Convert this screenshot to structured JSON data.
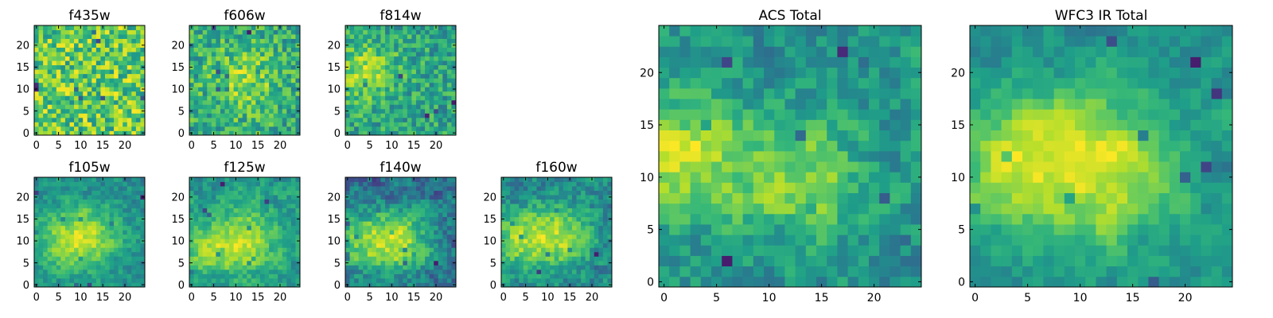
{
  "chart_data": [
    {
      "type": "heatmap",
      "title": "f435w",
      "size": 25,
      "xticks": [
        "0",
        "5",
        "10",
        "15",
        "20"
      ],
      "yticks": [
        "0",
        "5",
        "10",
        "15",
        "20"
      ],
      "colormap": "viridis",
      "seed": 435,
      "smooth": 0,
      "hot": []
    },
    {
      "type": "heatmap",
      "title": "f606w",
      "size": 25,
      "xticks": [
        "0",
        "5",
        "10",
        "15",
        "20"
      ],
      "yticks": [
        "0",
        "5",
        "10",
        "15",
        "20"
      ],
      "colormap": "viridis",
      "seed": 606,
      "smooth": 0,
      "hot": [
        [
          12,
          12,
          5,
          0.5
        ]
      ]
    },
    {
      "type": "heatmap",
      "title": "f814w",
      "size": 25,
      "xticks": [
        "0",
        "5",
        "10",
        "15",
        "20"
      ],
      "yticks": [
        "0",
        "5",
        "10",
        "15",
        "20"
      ],
      "colormap": "viridis",
      "seed": 814,
      "smooth": 0,
      "hot": [
        [
          4,
          14,
          5,
          0.7
        ]
      ]
    },
    {
      "type": "heatmap",
      "title": "f105w",
      "size": 25,
      "xticks": [
        "0",
        "5",
        "10",
        "15",
        "20"
      ],
      "yticks": [
        "0",
        "5",
        "10",
        "15",
        "20"
      ],
      "colormap": "viridis",
      "seed": 105,
      "smooth": 1,
      "hot": [
        [
          12,
          11,
          5,
          1.0
        ],
        [
          4,
          10,
          5,
          0.6
        ]
      ]
    },
    {
      "type": "heatmap",
      "title": "f125w",
      "size": 25,
      "xticks": [
        "0",
        "5",
        "10",
        "15",
        "20"
      ],
      "yticks": [
        "0",
        "5",
        "10",
        "15",
        "20"
      ],
      "colormap": "viridis",
      "seed": 125,
      "smooth": 1,
      "hot": [
        [
          12,
          10,
          5,
          1.0
        ],
        [
          3,
          8,
          4,
          0.6
        ]
      ]
    },
    {
      "type": "heatmap",
      "title": "f140w",
      "size": 25,
      "xticks": [
        "0",
        "5",
        "10",
        "15",
        "20"
      ],
      "yticks": [
        "0",
        "5",
        "10",
        "15",
        "20"
      ],
      "colormap": "viridis",
      "seed": 140,
      "smooth": 1,
      "hot": [
        [
          12,
          10,
          5,
          1.0
        ],
        [
          3,
          10,
          5,
          0.8
        ]
      ]
    },
    {
      "type": "heatmap",
      "title": "f160w",
      "size": 25,
      "xticks": [
        "0",
        "5",
        "10",
        "15",
        "20"
      ],
      "yticks": [
        "0",
        "5",
        "10",
        "15",
        "20"
      ],
      "colormap": "viridis",
      "seed": 160,
      "smooth": 1,
      "hot": [
        [
          12,
          11,
          5,
          1.0
        ],
        [
          3,
          10,
          4,
          0.7
        ]
      ]
    },
    {
      "type": "heatmap",
      "title": "ACS Total",
      "size": 25,
      "xticks": [
        "0",
        "5",
        "10",
        "15",
        "20"
      ],
      "yticks": [
        "0",
        "5",
        "10",
        "15",
        "20"
      ],
      "colormap": "viridis",
      "seed": 900,
      "smooth": 1,
      "hot": [
        [
          2,
          12,
          4,
          1.0
        ],
        [
          13,
          10,
          4,
          0.8
        ]
      ]
    },
    {
      "type": "heatmap",
      "title": "WFC3 IR Total",
      "size": 25,
      "xticks": [
        "0",
        "5",
        "10",
        "15",
        "20"
      ],
      "yticks": [
        "0",
        "5",
        "10",
        "15",
        "20"
      ],
      "colormap": "viridis",
      "seed": 3131,
      "smooth": 2,
      "hot": [
        [
          12,
          11,
          5,
          1.0
        ],
        [
          3,
          12,
          4,
          0.8
        ]
      ]
    }
  ]
}
